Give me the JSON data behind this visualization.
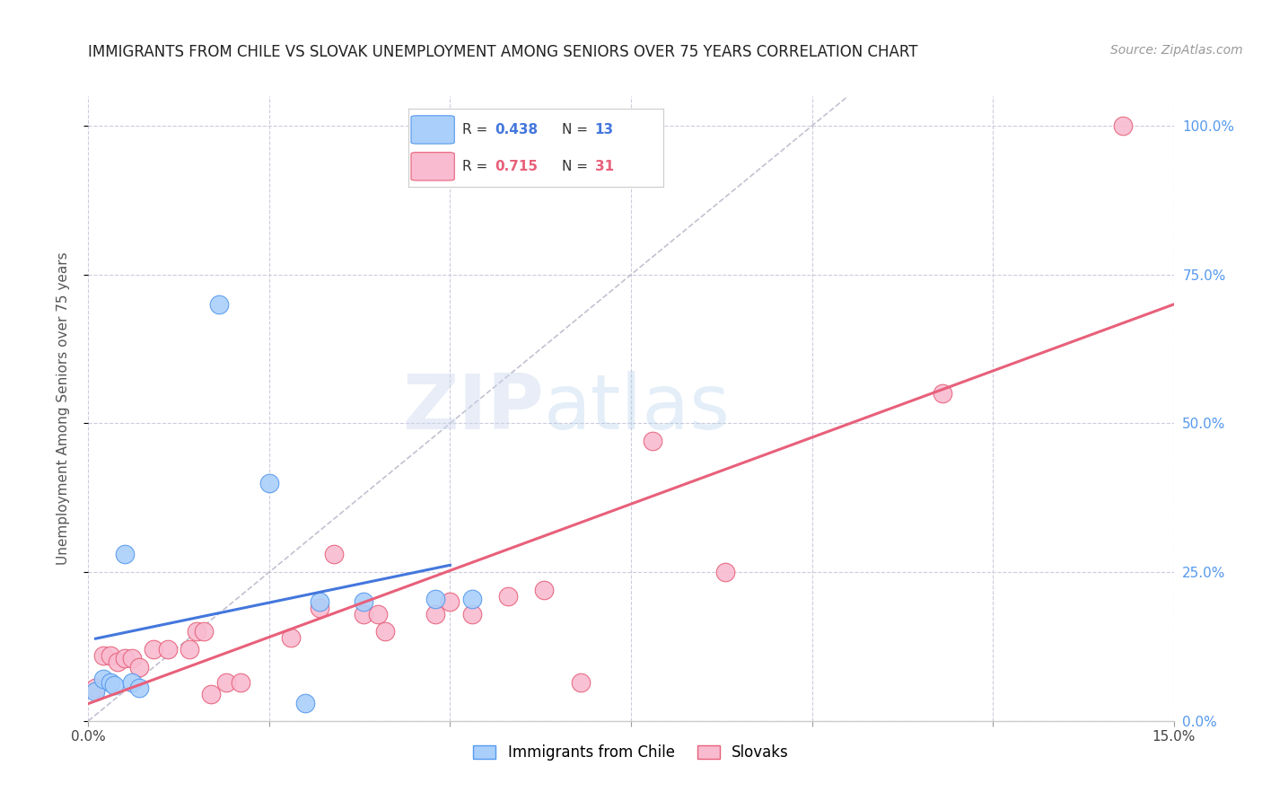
{
  "title": "IMMIGRANTS FROM CHILE VS SLOVAK UNEMPLOYMENT AMONG SENIORS OVER 75 YEARS CORRELATION CHART",
  "source": "Source: ZipAtlas.com",
  "ylabel": "Unemployment Among Seniors over 75 years",
  "xlim": [
    0,
    0.15
  ],
  "ylim": [
    0,
    1.05
  ],
  "x_ticks": [
    0.0,
    0.025,
    0.05,
    0.075,
    0.1,
    0.125,
    0.15
  ],
  "x_tick_labels": [
    "0.0%",
    "",
    "",
    "",
    "",
    "",
    "15.0%"
  ],
  "y_ticks": [
    0.0,
    0.25,
    0.5,
    0.75,
    1.0
  ],
  "y_tick_labels_right": [
    "0.0%",
    "25.0%",
    "50.0%",
    "75.0%",
    "100.0%"
  ],
  "blue_color": "#aacffa",
  "pink_color": "#f8bbd0",
  "blue_edge_color": "#5599ee",
  "pink_edge_color": "#e8607a",
  "blue_line_color": "#4477dd",
  "pink_line_color": "#e8607a",
  "ref_line_color": "#bbbbcc",
  "blue_scatter": [
    [
      0.001,
      0.05
    ],
    [
      0.002,
      0.07
    ],
    [
      0.003,
      0.065
    ],
    [
      0.0035,
      0.06
    ],
    [
      0.005,
      0.28
    ],
    [
      0.006,
      0.065
    ],
    [
      0.007,
      0.055
    ],
    [
      0.018,
      0.7
    ],
    [
      0.025,
      0.4
    ],
    [
      0.03,
      0.03
    ],
    [
      0.032,
      0.2
    ],
    [
      0.038,
      0.2
    ],
    [
      0.048,
      0.205
    ],
    [
      0.053,
      0.205
    ]
  ],
  "pink_scatter": [
    [
      0.001,
      0.055
    ],
    [
      0.002,
      0.11
    ],
    [
      0.003,
      0.11
    ],
    [
      0.004,
      0.1
    ],
    [
      0.005,
      0.105
    ],
    [
      0.006,
      0.105
    ],
    [
      0.007,
      0.09
    ],
    [
      0.009,
      0.12
    ],
    [
      0.011,
      0.12
    ],
    [
      0.014,
      0.12
    ],
    [
      0.015,
      0.15
    ],
    [
      0.016,
      0.15
    ],
    [
      0.017,
      0.045
    ],
    [
      0.019,
      0.065
    ],
    [
      0.021,
      0.065
    ],
    [
      0.028,
      0.14
    ],
    [
      0.032,
      0.19
    ],
    [
      0.034,
      0.28
    ],
    [
      0.038,
      0.18
    ],
    [
      0.04,
      0.18
    ],
    [
      0.041,
      0.15
    ],
    [
      0.048,
      0.18
    ],
    [
      0.05,
      0.2
    ],
    [
      0.053,
      0.18
    ],
    [
      0.058,
      0.21
    ],
    [
      0.063,
      0.22
    ],
    [
      0.068,
      0.065
    ],
    [
      0.078,
      0.47
    ],
    [
      0.088,
      0.25
    ],
    [
      0.118,
      0.55
    ],
    [
      0.143,
      1.0
    ]
  ],
  "watermark_zip": "ZIP",
  "watermark_atlas": "atlas",
  "background_color": "#ffffff",
  "grid_color": "#ccccdd",
  "title_fontsize": 12,
  "source_fontsize": 10,
  "tick_fontsize": 11,
  "ylabel_fontsize": 11,
  "legend_label1": "Immigrants from Chile",
  "legend_label2": "Slovaks"
}
